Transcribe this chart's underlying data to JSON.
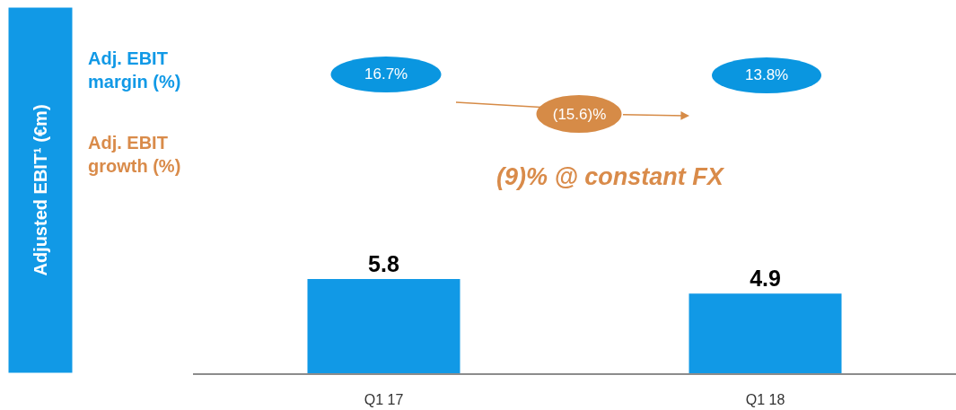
{
  "chart_data": {
    "type": "bar",
    "categories": [
      "Q1 17",
      "Q1 18"
    ],
    "values": [
      5.8,
      4.9
    ],
    "color": "#1199e6",
    "data_labels": true,
    "tick_labels": "x",
    "annotations": [
      "Adjusted EBIT¹ (€m)",
      "Adj. EBIT margin (%)",
      "Adj. EBIT growth (%)",
      "16.7%",
      "13.8%",
      "(15.6)%",
      "(9)% @ constant FX"
    ]
  }
}
